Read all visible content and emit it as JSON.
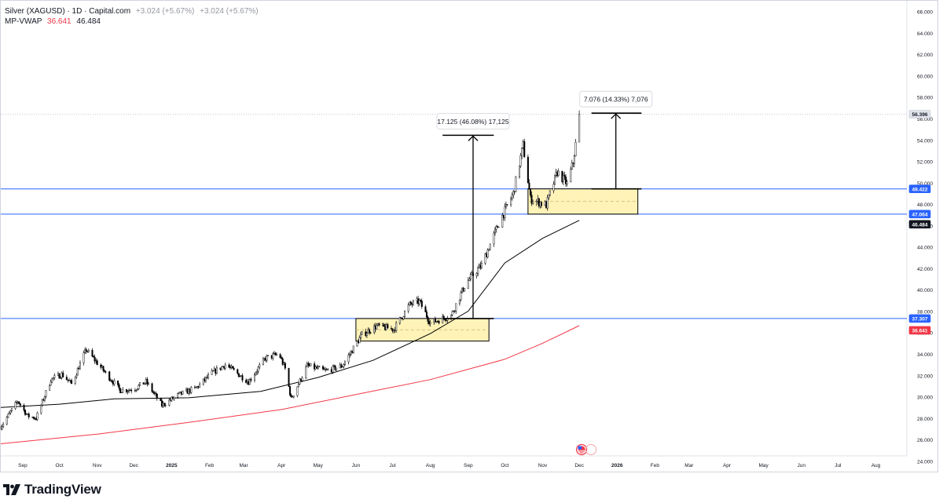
{
  "header": {
    "symbol": "Silver (XAGUSD) · 1D · Capital.com",
    "change_abs": "+3.024",
    "change_pct": "(+5.67%)",
    "change_abs_2": "+3.024",
    "change_pct_2": "(+5.67%)",
    "indicator_name": "MP-VWAP",
    "indicator_value_1": "36.641",
    "indicator_value_2": "46.484"
  },
  "footer": {
    "brand": "TradingView"
  },
  "colors": {
    "up": "#ffffff",
    "down": "#000000",
    "wick": "#000000",
    "vwap": "#000000",
    "anchored_vwap": "#f23645",
    "hline": "#2962ff",
    "zone_fill": "#fff3b8",
    "zone_border": "#000000"
  },
  "chart_data": {
    "type": "candlestick",
    "y_range": [
      23,
      67
    ],
    "grid": false,
    "y_ticks": [
      "24.000",
      "26.000",
      "28.000",
      "30.000",
      "32.000",
      "34.000",
      "36.000",
      "38.000",
      "40.000",
      "42.000",
      "44.000",
      "46.000",
      "48.000",
      "50.000",
      "52.000",
      "54.000",
      "56.000",
      "58.000",
      "60.000",
      "62.000",
      "64.000",
      "66.000"
    ],
    "x_ticks": [
      "Sep",
      "Oct",
      "Nov",
      "Dec",
      "2025",
      "Feb",
      "Mar",
      "Apr",
      "May",
      "Jun",
      "Jul",
      "Aug",
      "Sep",
      "Oct",
      "Nov",
      "Dec",
      "2026",
      "Feb",
      "Mar",
      "Apr",
      "May",
      "Jun",
      "Jul",
      "Aug"
    ],
    "x_tick_dates": [
      "2024-09-01",
      "2024-10-01",
      "2024-11-01",
      "2024-12-01",
      "2025-01-01",
      "2025-02-01",
      "2025-03-01",
      "2025-04-01",
      "2025-05-01",
      "2025-06-01",
      "2025-07-01",
      "2025-08-01",
      "2025-09-01",
      "2025-10-01",
      "2025-11-01",
      "2025-12-01",
      "2026-01-01",
      "2026-02-01",
      "2026-03-01",
      "2026-04-01",
      "2026-05-01",
      "2026-06-01",
      "2026-07-01",
      "2026-08-01"
    ],
    "price_labels": [
      {
        "text": "56.396",
        "value": 56.396,
        "style": "gray"
      },
      {
        "text": "49.422",
        "value": 49.422,
        "style": "blue"
      },
      {
        "text": "47.064",
        "value": 47.064,
        "style": "blue"
      },
      {
        "text": "46.484",
        "value": 46.484,
        "style": "black"
      },
      {
        "text": "37.307",
        "value": 37.307,
        "style": "blue"
      },
      {
        "text": "36.641",
        "value": 36.641,
        "style": "red"
      }
    ],
    "horizontal_lines": [
      49.422,
      47.064,
      37.307
    ],
    "current_price": 56.396,
    "path": [
      [
        "2024-08-14",
        27.2
      ],
      [
        "2024-08-28",
        29.6
      ],
      [
        "2024-09-05",
        28.2
      ],
      [
        "2024-09-12",
        28.0
      ],
      [
        "2024-09-24",
        31.6
      ],
      [
        "2024-10-03",
        32.1
      ],
      [
        "2024-10-11",
        31.2
      ],
      [
        "2024-10-23",
        34.4
      ],
      [
        "2024-11-05",
        32.6
      ],
      [
        "2024-11-20",
        30.6
      ],
      [
        "2024-12-01",
        30.7
      ],
      [
        "2024-12-11",
        31.4
      ],
      [
        "2024-12-24",
        29.2
      ],
      [
        "2025-01-07",
        30.2
      ],
      [
        "2025-01-21",
        30.8
      ],
      [
        "2025-02-03",
        32.2
      ],
      [
        "2025-02-14",
        33.0
      ],
      [
        "2025-03-05",
        31.4
      ],
      [
        "2025-03-19",
        33.6
      ],
      [
        "2025-03-30",
        34.0
      ],
      [
        "2025-04-04",
        32.6
      ],
      [
        "2025-04-09",
        29.8
      ],
      [
        "2025-04-22",
        32.9
      ],
      [
        "2025-05-07",
        32.4
      ],
      [
        "2025-05-21",
        32.9
      ],
      [
        "2025-06-06",
        35.8
      ],
      [
        "2025-06-18",
        36.6
      ],
      [
        "2025-07-02",
        36.3
      ],
      [
        "2025-07-15",
        38.6
      ],
      [
        "2025-07-23",
        38.9
      ],
      [
        "2025-08-01",
        36.9
      ],
      [
        "2025-08-18",
        37.6
      ],
      [
        "2025-08-30",
        40.6
      ],
      [
        "2025-09-12",
        42.3
      ],
      [
        "2025-09-26",
        46.2
      ],
      [
        "2025-10-08",
        49.0
      ],
      [
        "2025-10-16",
        53.5
      ],
      [
        "2025-10-22",
        48.5
      ],
      [
        "2025-11-04",
        47.9
      ],
      [
        "2025-11-13",
        51.0
      ],
      [
        "2025-11-21",
        49.9
      ],
      [
        "2025-11-26",
        51.9
      ],
      [
        "2025-11-28",
        53.6
      ],
      [
        "2025-12-01",
        56.4
      ]
    ],
    "vwap": [
      [
        "2024-08-14",
        29.0
      ],
      [
        "2024-10-01",
        29.3
      ],
      [
        "2024-11-15",
        29.8
      ],
      [
        "2025-01-15",
        29.9
      ],
      [
        "2025-03-15",
        30.5
      ],
      [
        "2025-05-01",
        31.8
      ],
      [
        "2025-06-15",
        33.4
      ],
      [
        "2025-08-01",
        35.9
      ],
      [
        "2025-09-01",
        38.0
      ],
      [
        "2025-10-01",
        42.5
      ],
      [
        "2025-11-01",
        44.8
      ],
      [
        "2025-12-01",
        46.484
      ]
    ],
    "anchored_vwap": [
      [
        "2024-08-14",
        25.6
      ],
      [
        "2024-11-01",
        26.5
      ],
      [
        "2025-01-15",
        27.6
      ],
      [
        "2025-04-01",
        28.8
      ],
      [
        "2025-06-01",
        30.2
      ],
      [
        "2025-08-01",
        31.6
      ],
      [
        "2025-10-01",
        33.5
      ],
      [
        "2025-11-01",
        35.0
      ],
      [
        "2025-12-01",
        36.641
      ]
    ],
    "zones": [
      {
        "x1": "2025-06-01",
        "x2": "2025-09-18",
        "y1": 35.2,
        "y2": 37.307
      },
      {
        "x1": "2025-10-20",
        "x2": "2026-01-18",
        "y1": 47.064,
        "y2": 49.422
      }
    ],
    "measures": [
      {
        "label": "17.125 (46.08%) 17,125",
        "x": "2025-09-05",
        "x1": "2025-08-11",
        "x2": "2025-09-22",
        "from": 37.307,
        "to": 54.432
      },
      {
        "label": "7.076 (14.33%) 7,076",
        "x": "2025-12-31",
        "x1": "2025-12-11",
        "x2": "2026-01-21",
        "from": 49.422,
        "to": 56.498
      }
    ]
  }
}
